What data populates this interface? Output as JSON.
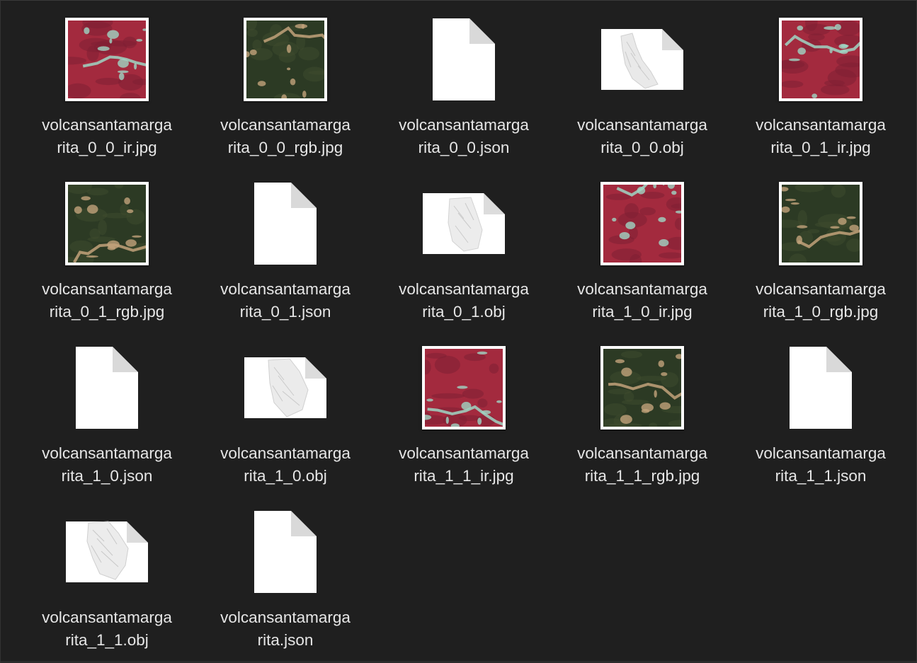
{
  "files": [
    {
      "line1": "volcansantamarga",
      "line2": "rita_0_0_ir.jpg",
      "kind": "image",
      "palette": "ir",
      "icon": "image-thumbnail-icon"
    },
    {
      "line1": "volcansantamarga",
      "line2": "rita_0_0_rgb.jpg",
      "kind": "image",
      "palette": "rgb",
      "icon": "image-thumbnail-icon"
    },
    {
      "line1": "volcansantamarga",
      "line2": "rita_0_0.json",
      "kind": "doc",
      "icon": "json-document-icon"
    },
    {
      "line1": "volcansantamarga",
      "line2": "rita_0_0.obj",
      "kind": "obj",
      "icon": "obj-model-icon"
    },
    {
      "line1": "volcansantamarga",
      "line2": "rita_0_1_ir.jpg",
      "kind": "image",
      "palette": "ir",
      "icon": "image-thumbnail-icon"
    },
    {
      "line1": "volcansantamarga",
      "line2": "rita_0_1_rgb.jpg",
      "kind": "image",
      "palette": "rgb",
      "icon": "image-thumbnail-icon"
    },
    {
      "line1": "volcansantamarga",
      "line2": "rita_0_1.json",
      "kind": "doc",
      "icon": "json-document-icon"
    },
    {
      "line1": "volcansantamarga",
      "line2": "rita_0_1.obj",
      "kind": "obj",
      "icon": "obj-model-icon"
    },
    {
      "line1": "volcansantamarga",
      "line2": "rita_1_0_ir.jpg",
      "kind": "image",
      "palette": "ir",
      "icon": "image-thumbnail-icon"
    },
    {
      "line1": "volcansantamarga",
      "line2": "rita_1_0_rgb.jpg",
      "kind": "image",
      "palette": "rgb",
      "icon": "image-thumbnail-icon"
    },
    {
      "line1": "volcansantamarga",
      "line2": "rita_1_0.json",
      "kind": "doc",
      "icon": "json-document-icon"
    },
    {
      "line1": "volcansantamarga",
      "line2": "rita_1_0.obj",
      "kind": "obj",
      "icon": "obj-model-icon"
    },
    {
      "line1": "volcansantamarga",
      "line2": "rita_1_1_ir.jpg",
      "kind": "image",
      "palette": "ir",
      "icon": "image-thumbnail-icon"
    },
    {
      "line1": "volcansantamarga",
      "line2": "rita_1_1_rgb.jpg",
      "kind": "image",
      "palette": "rgb",
      "icon": "image-thumbnail-icon"
    },
    {
      "line1": "volcansantamarga",
      "line2": "rita_1_1.json",
      "kind": "doc",
      "icon": "json-document-icon"
    },
    {
      "line1": "volcansantamarga",
      "line2": "rita_1_1.obj",
      "kind": "obj",
      "icon": "obj-model-icon"
    },
    {
      "line1": "volcansantamarga",
      "line2": "rita.json",
      "kind": "doc",
      "icon": "json-document-icon"
    }
  ],
  "colors": {
    "background": "#1f1f1f",
    "label_text": "#e6e6e6",
    "ir_base": "#a32a3e",
    "ir_highlight": "#9fd6c4",
    "rgb_base": "#2c3a24",
    "rgb_highlight": "#c2a27a"
  }
}
